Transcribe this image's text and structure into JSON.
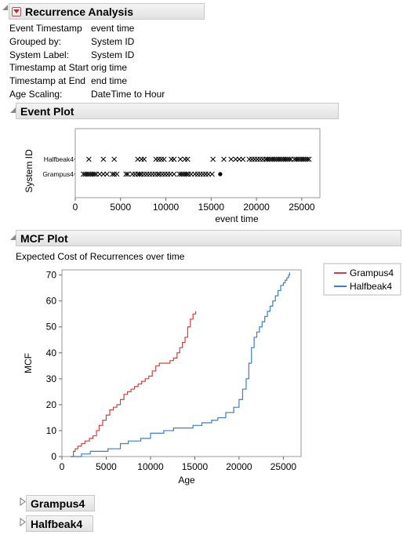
{
  "report": {
    "title": "Recurrence Analysis",
    "info": [
      {
        "label": "Event Timestamp",
        "value": "event time"
      },
      {
        "label": "Grouped by:",
        "value": "System ID"
      },
      {
        "label": "System Label:",
        "value": "System ID"
      },
      {
        "label": "Timestamp at Start",
        "value": "orig time"
      },
      {
        "label": "Timestamp at End",
        "value": "end time"
      },
      {
        "label": "Age Scaling:",
        "value": "DateTime to Hour"
      }
    ]
  },
  "event_plot": {
    "title": "Event Plot"
  },
  "mcf_plot": {
    "title": "MCF Plot",
    "subtitle": "Expected Cost of Recurrences over time"
  },
  "sections": {
    "grampus_title": "Grampus4",
    "halfbeak_title": "Halfbeak4"
  },
  "chart_data": [
    {
      "type": "scatter",
      "xlabel": "event time",
      "ylabel": "System ID",
      "xlim": [
        0,
        27000
      ],
      "x_ticks": [
        "0",
        "5000",
        "10000",
        "15000",
        "20000",
        "25000"
      ],
      "categories": [
        "Halfbeak4",
        "Grampus4"
      ],
      "series": [
        {
          "name": "Halfbeak4",
          "marker": "x",
          "x": [
            1500,
            3100,
            4300,
            6900,
            7300,
            7600,
            8900,
            9200,
            9500,
            9800,
            10600,
            10900,
            11600,
            12100,
            12400,
            15200,
            16400,
            17200,
            17700,
            18100,
            18500,
            19200,
            19500,
            19800,
            20100,
            20400,
            20700,
            21000,
            21200,
            21400,
            21600,
            21800,
            22000,
            22200,
            22400,
            22600,
            22800,
            23000,
            23200,
            23400,
            23600,
            23800,
            24200,
            24400,
            24600,
            24800,
            25000,
            25200,
            25400,
            25600,
            25800
          ]
        },
        {
          "name": "Grampus4",
          "marker": "x",
          "x": [
            900,
            1100,
            1300,
            1500,
            1700,
            1900,
            2100,
            2300,
            2700,
            3100,
            3500,
            4100,
            4300,
            4600,
            5600,
            5800,
            6300,
            6600,
            6900,
            7100,
            7300,
            7600,
            7900,
            8200,
            8500,
            8800,
            9100,
            9300,
            9600,
            9900,
            10200,
            10500,
            10900,
            11500,
            11700,
            11900,
            12100,
            12300,
            12500,
            12800,
            13200,
            13500,
            13800,
            14100,
            14400,
            14700,
            15100
          ]
        },
        {
          "name": "Grampus4 end",
          "marker": "dot",
          "x": [
            16000
          ]
        }
      ]
    },
    {
      "type": "line",
      "step": true,
      "xlabel": "Age",
      "ylabel": "MCF",
      "xlim": [
        0,
        27000
      ],
      "ylim": [
        0,
        72
      ],
      "x_ticks": [
        "0",
        "5000",
        "10000",
        "15000",
        "20000",
        "25000"
      ],
      "y_ticks": [
        "0",
        "10",
        "20",
        "30",
        "40",
        "50",
        "60",
        "70"
      ],
      "legend_position": "top-right",
      "series": [
        {
          "name": "Grampus4",
          "color": "#d04040",
          "x": [
            1000,
            1300,
            1500,
            1800,
            2200,
            2600,
            3100,
            3500,
            3900,
            4200,
            4600,
            5000,
            5400,
            5800,
            6200,
            6600,
            7000,
            7400,
            7800,
            8200,
            8600,
            9000,
            9400,
            9800,
            10200,
            10600,
            11000,
            11400,
            11800,
            12200,
            12600,
            13000,
            13300,
            13600,
            13900,
            14200,
            14500,
            14800,
            15100
          ],
          "values": [
            0,
            2,
            3,
            4,
            5,
            6,
            7,
            8,
            10,
            12,
            14,
            16,
            18,
            19,
            20,
            22,
            24,
            25,
            26,
            27,
            28,
            29,
            30,
            31,
            33,
            35,
            36,
            36,
            36,
            37,
            38,
            40,
            42,
            44,
            46,
            50,
            53,
            55,
            56
          ]
        },
        {
          "name": "Halfbeak4",
          "color": "#3a7fc4",
          "x": [
            1000,
            2200,
            3200,
            5200,
            6600,
            7500,
            8900,
            10000,
            11500,
            12600,
            14800,
            15800,
            16900,
            17600,
            18500,
            19400,
            20000,
            20400,
            20800,
            21100,
            21400,
            21700,
            22000,
            22300,
            22600,
            22900,
            23200,
            23500,
            23800,
            24100,
            24400,
            24700,
            25000,
            25200,
            25400,
            25600,
            25700
          ],
          "values": [
            0,
            1,
            2,
            3,
            5,
            6,
            7,
            9,
            10,
            11,
            12,
            13,
            14,
            15,
            17,
            19,
            22,
            26,
            30,
            36,
            42,
            46,
            48,
            50,
            52,
            54,
            56,
            58,
            60,
            62,
            64,
            66,
            67,
            68,
            69,
            70,
            71
          ]
        }
      ]
    }
  ]
}
